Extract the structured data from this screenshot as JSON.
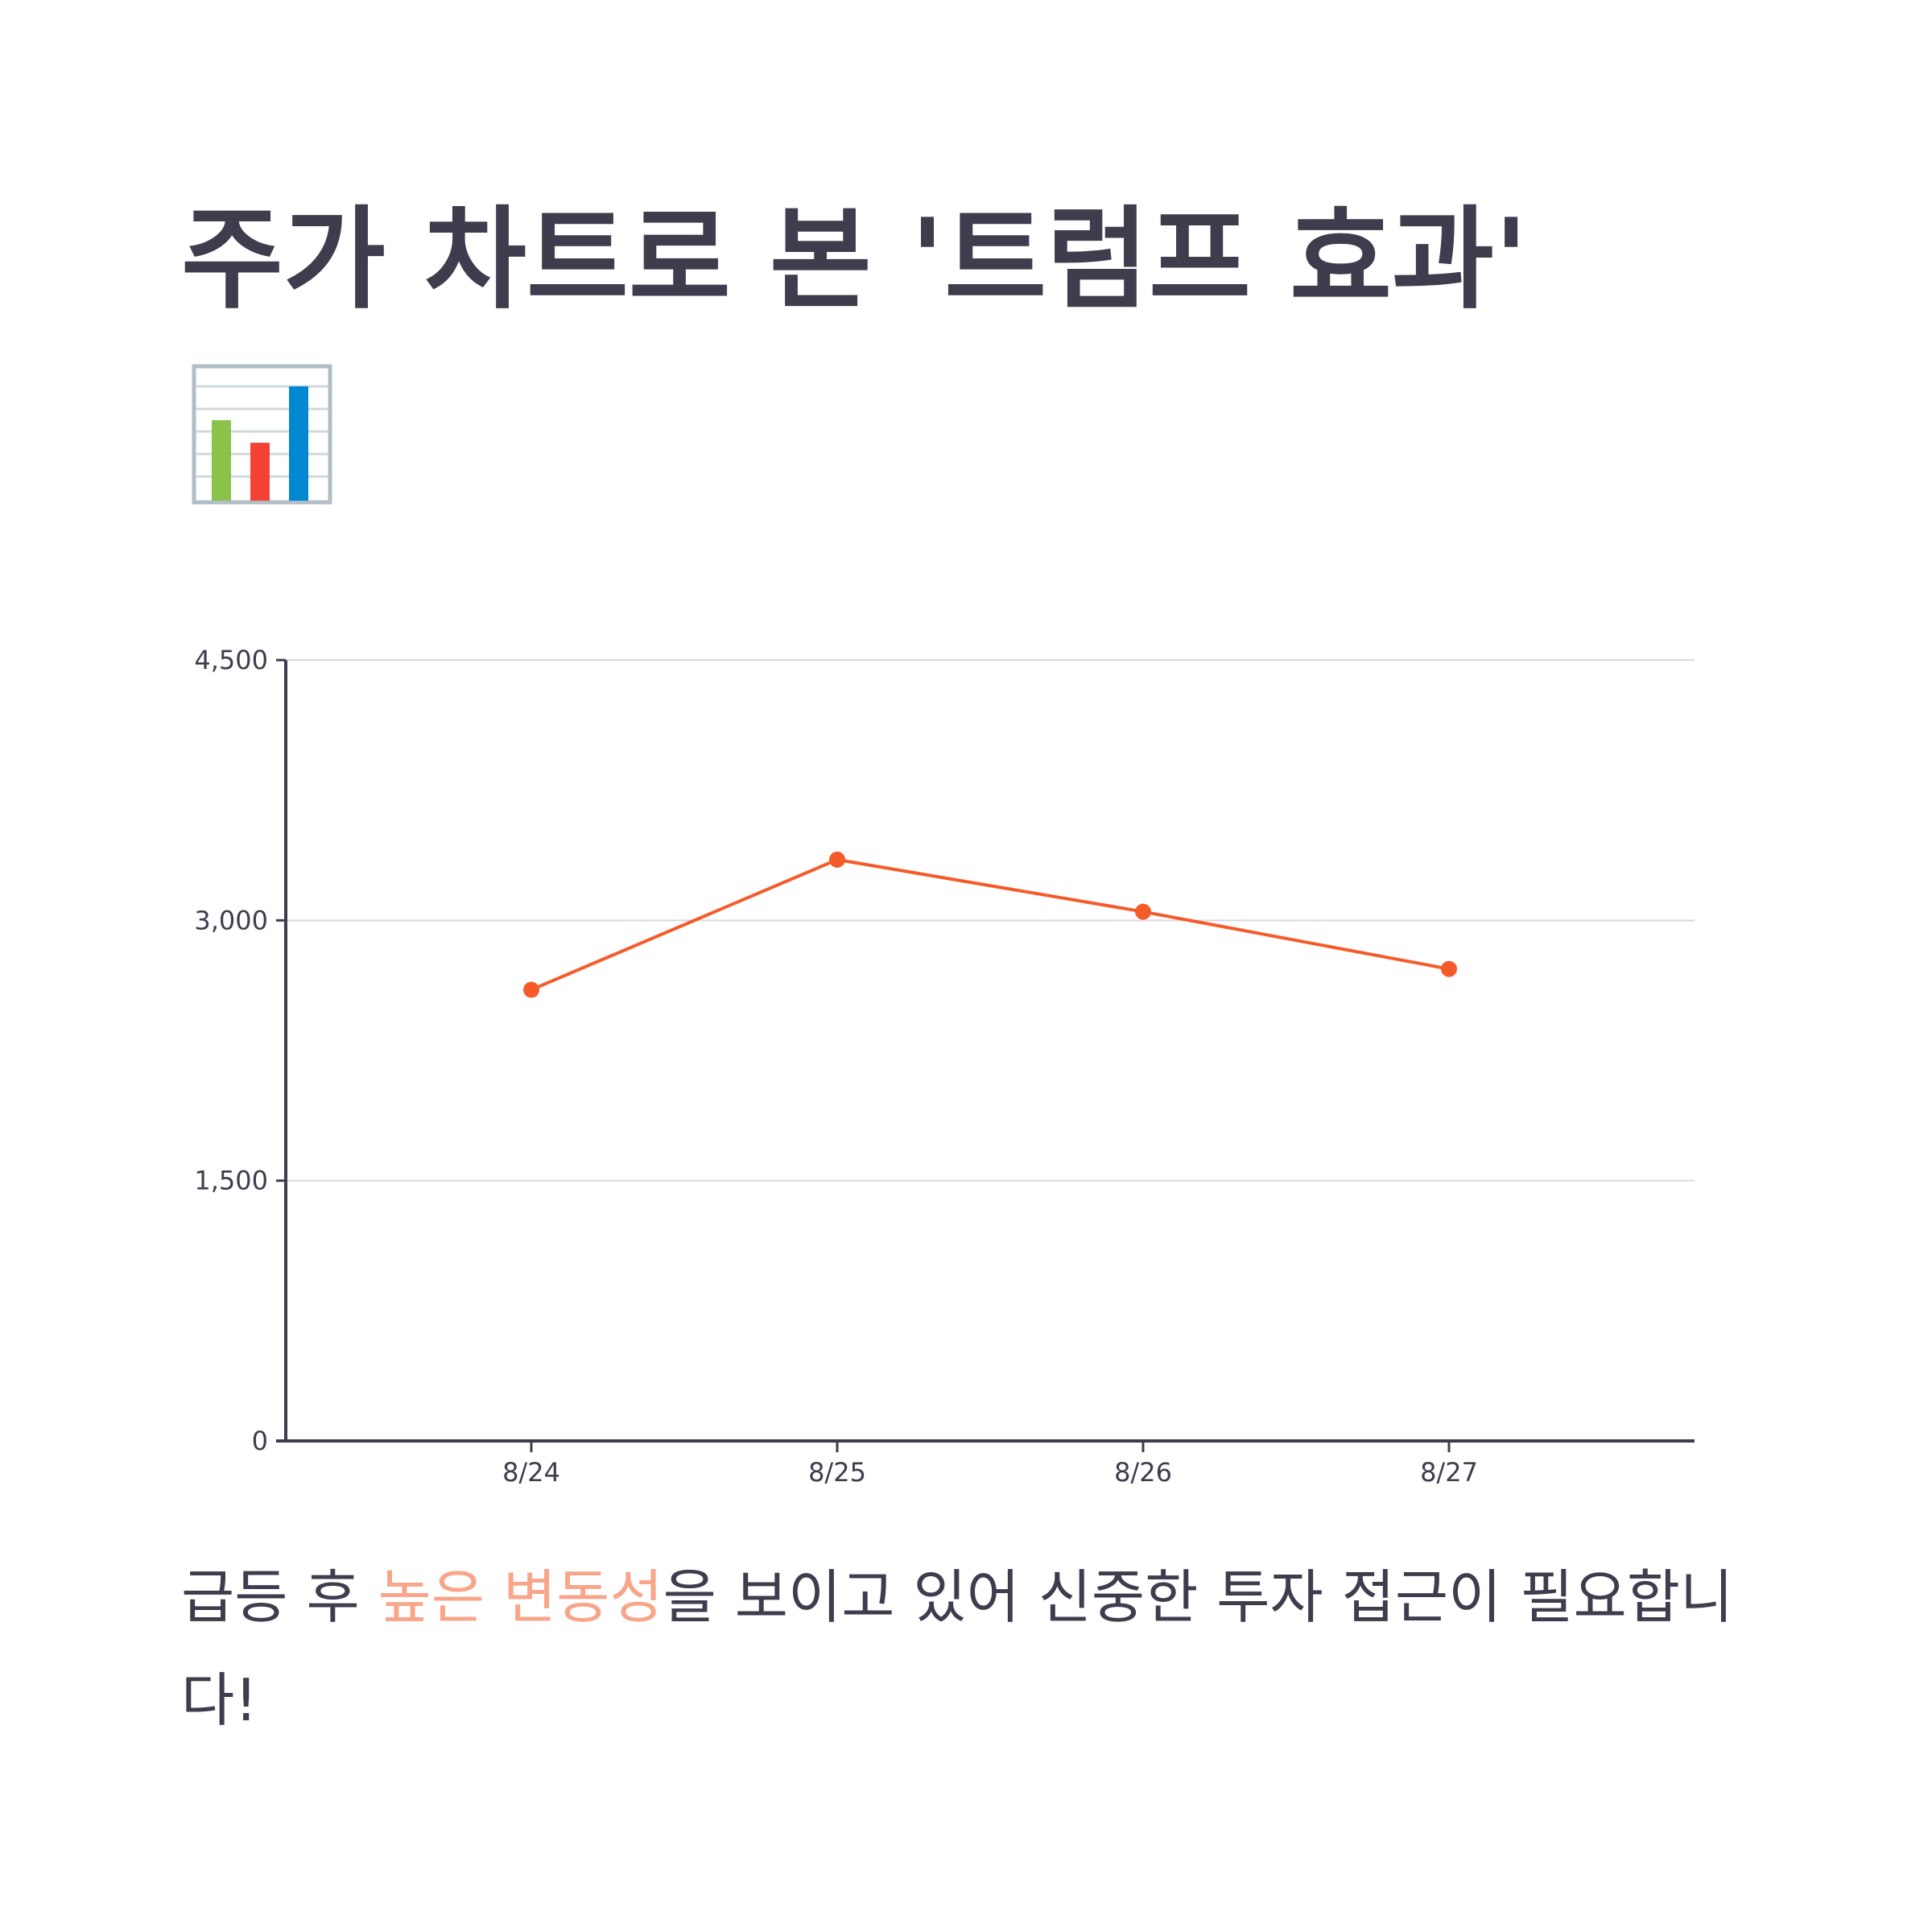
{
  "title": "주가 차트로 본 '트럼프 효과'",
  "title_emoji": "bar-chart-emoji",
  "colors": {
    "text": "#3f3c4e",
    "line": "#f55b2a",
    "highlight": "#f8a589",
    "grid": "#d9d9dc"
  },
  "caption": {
    "before": "급등 후 ",
    "highlight": "높은 변동성",
    "after": "을 보이고 있어 신중한 투자 접근이 필요합니다!"
  },
  "chart_data": {
    "type": "line",
    "categories": [
      "8/24",
      "8/25",
      "8/26",
      "8/27"
    ],
    "series": [
      {
        "values": [
          2600,
          3350,
          3050,
          2720
        ]
      }
    ],
    "y_ticks": [
      "0",
      "1,500",
      "3,000",
      "4,500"
    ],
    "ylim": [
      0,
      4500
    ],
    "grid": true,
    "title": "",
    "xlabel": "",
    "ylabel": ""
  }
}
